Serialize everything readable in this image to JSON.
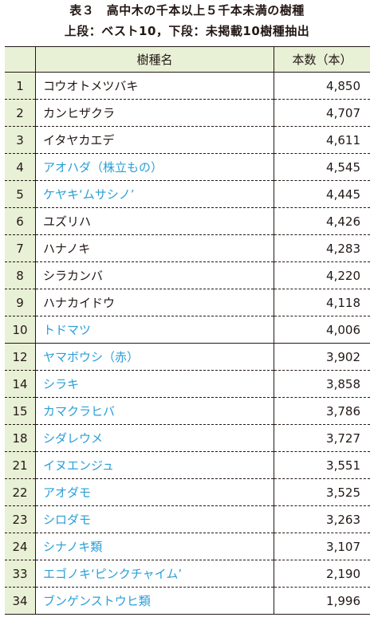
{
  "title_line1": "表３　高中木の千本以上５千本未満の樹種",
  "title_line2": "上段：ベスト10，下段：未掲載10樹種抽出",
  "header": {
    "rank": "",
    "name": "樹種名",
    "count": "本数（本）"
  },
  "colors": {
    "header_bg": "#e8f0d6",
    "highlight_text": "#2a9fd6",
    "text": "#231815"
  },
  "rows": [
    {
      "rank": "1",
      "name": "コウオトメツバキ",
      "count": "4,850",
      "highlight": false
    },
    {
      "rank": "2",
      "name": "カンヒザクラ",
      "count": "4,707",
      "highlight": false
    },
    {
      "rank": "3",
      "name": "イタヤカエデ",
      "count": "4,611",
      "highlight": false
    },
    {
      "rank": "4",
      "name": "アオハダ（株立もの）",
      "count": "4,545",
      "highlight": true
    },
    {
      "rank": "5",
      "name": "ケヤキ‘ムサシノ’",
      "count": "4,445",
      "highlight": true
    },
    {
      "rank": "6",
      "name": "ユズリハ",
      "count": "4,426",
      "highlight": false
    },
    {
      "rank": "7",
      "name": "ハナノキ",
      "count": "4,283",
      "highlight": false
    },
    {
      "rank": "8",
      "name": "シラカンバ",
      "count": "4,220",
      "highlight": false
    },
    {
      "rank": "9",
      "name": "ハナカイドウ",
      "count": "4,118",
      "highlight": false
    },
    {
      "rank": "10",
      "name": "トドマツ",
      "count": "4,006",
      "highlight": true
    },
    {
      "rank": "12",
      "name": "ヤマボウシ（赤）",
      "count": "3,902",
      "highlight": true
    },
    {
      "rank": "14",
      "name": "シラキ",
      "count": "3,858",
      "highlight": true
    },
    {
      "rank": "15",
      "name": "カマクラヒバ",
      "count": "3,786",
      "highlight": true
    },
    {
      "rank": "18",
      "name": "シダレウメ",
      "count": "3,727",
      "highlight": true
    },
    {
      "rank": "21",
      "name": "イヌエンジュ",
      "count": "3,551",
      "highlight": true
    },
    {
      "rank": "22",
      "name": "アオダモ",
      "count": "3,525",
      "highlight": true
    },
    {
      "rank": "23",
      "name": "シロダモ",
      "count": "3,263",
      "highlight": true
    },
    {
      "rank": "24",
      "name": "シナノキ類",
      "count": "3,107",
      "highlight": true
    },
    {
      "rank": "33",
      "name": "エゴノキ‘ピンクチャイム’",
      "count": "2,190",
      "highlight": true
    },
    {
      "rank": "34",
      "name": "ブンゲンストウヒ類",
      "count": "1,996",
      "highlight": true
    }
  ]
}
